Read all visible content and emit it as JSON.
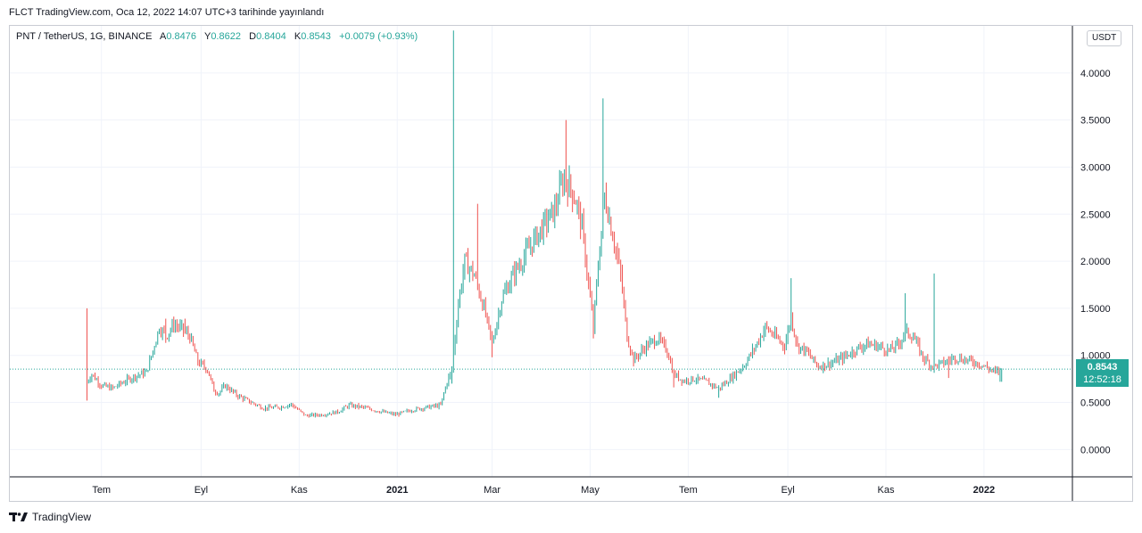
{
  "header": {
    "published_text": "FLCT TradingView.com, Oca 12, 2022 14:07 UTC+3 tarihinde yayınlandı"
  },
  "legend": {
    "symbol": "PNT / TetherUS, 1G, BINANCE",
    "open_label": "A",
    "open_value": "0.8476",
    "high_label": "Y",
    "high_value": "0.8622",
    "low_label": "D",
    "low_value": "0.8404",
    "close_label": "K",
    "close_value": "0.8543",
    "change": "+0.0079 (+0.93%)"
  },
  "currency_badge": "USDT",
  "price_tag": {
    "price": "0.8543",
    "countdown": "12:52:18"
  },
  "footer": {
    "brand": "TradingView"
  },
  "colors": {
    "up": "#26a69a",
    "down": "#ef5350",
    "grid": "#f0f3fa",
    "last_price_line": "#26a69a"
  },
  "chart_data": {
    "type": "candlestick",
    "symbol": "PNT / TetherUS",
    "interval": "1G",
    "exchange": "BINANCE",
    "y_axis": {
      "ticks": [
        "0.0000",
        "0.5000",
        "1.0000",
        "1.5000",
        "2.0000",
        "2.5000",
        "3.0000",
        "3.5000",
        "4.0000"
      ],
      "tick_values": [
        0,
        0.5,
        1.0,
        1.5,
        2.0,
        2.5,
        3.0,
        3.5,
        4.0
      ],
      "range": [
        -0.29,
        4.5
      ]
    },
    "x_axis": {
      "ticks": [
        {
          "label": "Tem",
          "date": "2020-07-01",
          "bold": false
        },
        {
          "label": "Eyl",
          "date": "2020-09-01",
          "bold": false
        },
        {
          "label": "Kas",
          "date": "2020-11-01",
          "bold": false
        },
        {
          "label": "2021",
          "date": "2021-01-01",
          "bold": true
        },
        {
          "label": "Mar",
          "date": "2021-03-01",
          "bold": false
        },
        {
          "label": "May",
          "date": "2021-05-01",
          "bold": false
        },
        {
          "label": "Tem",
          "date": "2021-07-01",
          "bold": false
        },
        {
          "label": "Eyl",
          "date": "2021-09-01",
          "bold": false
        },
        {
          "label": "Kas",
          "date": "2021-11-01",
          "bold": false
        },
        {
          "label": "2022",
          "date": "2022-01-01",
          "bold": true
        }
      ],
      "range": [
        "2020-05-05",
        "2022-02-25"
      ]
    },
    "last_price": 0.8543,
    "series_path": [
      [
        "2020-06-22",
        0.72
      ],
      [
        "2020-06-25",
        0.8
      ],
      [
        "2020-07-01",
        0.68
      ],
      [
        "2020-07-08",
        0.65
      ],
      [
        "2020-07-15",
        0.72
      ],
      [
        "2020-07-22",
        0.78
      ],
      [
        "2020-07-29",
        0.82
      ],
      [
        "2020-08-02",
        1.05
      ],
      [
        "2020-08-06",
        1.3
      ],
      [
        "2020-08-10",
        1.2
      ],
      [
        "2020-08-15",
        1.33
      ],
      [
        "2020-08-20",
        1.28
      ],
      [
        "2020-08-25",
        1.2
      ],
      [
        "2020-08-30",
        0.93
      ],
      [
        "2020-09-05",
        0.85
      ],
      [
        "2020-09-09",
        0.63
      ],
      [
        "2020-09-12",
        0.6
      ],
      [
        "2020-09-16",
        0.68
      ],
      [
        "2020-09-23",
        0.58
      ],
      [
        "2020-10-01",
        0.51
      ],
      [
        "2020-10-10",
        0.44
      ],
      [
        "2020-10-20",
        0.45
      ],
      [
        "2020-10-27",
        0.48
      ],
      [
        "2020-11-05",
        0.36
      ],
      [
        "2020-11-15",
        0.37
      ],
      [
        "2020-11-25",
        0.4
      ],
      [
        "2020-12-02",
        0.47
      ],
      [
        "2020-12-10",
        0.45
      ],
      [
        "2020-12-20",
        0.41
      ],
      [
        "2020-12-31",
        0.37
      ],
      [
        "2021-01-10",
        0.42
      ],
      [
        "2021-01-20",
        0.45
      ],
      [
        "2021-01-28",
        0.47
      ],
      [
        "2021-02-01",
        0.72
      ],
      [
        "2021-02-04",
        0.85
      ],
      [
        "2021-02-08",
        1.55
      ],
      [
        "2021-02-12",
        2.0
      ],
      [
        "2021-02-18",
        1.85
      ],
      [
        "2021-02-24",
        1.5
      ],
      [
        "2021-03-01",
        1.12
      ],
      [
        "2021-03-07",
        1.6
      ],
      [
        "2021-03-14",
        1.85
      ],
      [
        "2021-03-21",
        2.05
      ],
      [
        "2021-03-28",
        2.25
      ],
      [
        "2021-04-03",
        2.4
      ],
      [
        "2021-04-09",
        2.55
      ],
      [
        "2021-04-14",
        2.85
      ],
      [
        "2021-04-18",
        2.8
      ],
      [
        "2021-04-22",
        2.65
      ],
      [
        "2021-04-26",
        2.35
      ],
      [
        "2021-04-30",
        1.75
      ],
      [
        "2021-05-03",
        1.3
      ],
      [
        "2021-05-06",
        1.95
      ],
      [
        "2021-05-10",
        2.7
      ],
      [
        "2021-05-13",
        2.45
      ],
      [
        "2021-05-16",
        2.2
      ],
      [
        "2021-05-20",
        1.85
      ],
      [
        "2021-05-24",
        1.2
      ],
      [
        "2021-05-28",
        0.95
      ],
      [
        "2021-06-05",
        1.1
      ],
      [
        "2021-06-12",
        1.18
      ],
      [
        "2021-06-18",
        1.05
      ],
      [
        "2021-06-22",
        0.8
      ],
      [
        "2021-06-28",
        0.73
      ],
      [
        "2021-07-05",
        0.75
      ],
      [
        "2021-07-12",
        0.72
      ],
      [
        "2021-07-20",
        0.65
      ],
      [
        "2021-07-27",
        0.75
      ],
      [
        "2021-08-05",
        0.9
      ],
      [
        "2021-08-12",
        1.1
      ],
      [
        "2021-08-18",
        1.3
      ],
      [
        "2021-08-24",
        1.2
      ],
      [
        "2021-08-30",
        1.1
      ],
      [
        "2021-09-03",
        1.4
      ],
      [
        "2021-09-07",
        1.1
      ],
      [
        "2021-09-12",
        1.05
      ],
      [
        "2021-09-20",
        0.88
      ],
      [
        "2021-09-28",
        0.92
      ],
      [
        "2021-10-05",
        0.97
      ],
      [
        "2021-10-12",
        1.05
      ],
      [
        "2021-10-20",
        1.12
      ],
      [
        "2021-10-27",
        1.1
      ],
      [
        "2021-11-03",
        1.05
      ],
      [
        "2021-11-09",
        1.12
      ],
      [
        "2021-11-13",
        1.25
      ],
      [
        "2021-11-18",
        1.2
      ],
      [
        "2021-11-24",
        0.98
      ],
      [
        "2021-11-30",
        0.88
      ],
      [
        "2021-12-07",
        0.92
      ],
      [
        "2021-12-14",
        0.98
      ],
      [
        "2021-12-21",
        0.95
      ],
      [
        "2021-12-28",
        0.92
      ],
      [
        "2022-01-04",
        0.86
      ],
      [
        "2022-01-08",
        0.82
      ],
      [
        "2022-01-12",
        0.8543
      ]
    ],
    "wicks": [
      [
        "2020-06-22",
        1.5
      ],
      [
        "2020-08-10",
        1.39
      ],
      [
        "2020-08-22",
        1.39
      ],
      [
        "2021-02-05",
        4.45
      ],
      [
        "2021-02-20",
        2.61
      ],
      [
        "2021-04-16",
        3.5
      ],
      [
        "2021-05-09",
        3.73
      ],
      [
        "2021-09-03",
        1.82
      ],
      [
        "2021-11-13",
        1.66
      ],
      [
        "2021-12-01",
        1.87
      ]
    ],
    "lows": [
      [
        "2020-06-22",
        0.52
      ],
      [
        "2021-02-04",
        0.7
      ],
      [
        "2021-03-01",
        0.98
      ],
      [
        "2021-05-03",
        1.18
      ],
      [
        "2021-06-22",
        0.66
      ],
      [
        "2021-07-20",
        0.55
      ],
      [
        "2021-12-10",
        0.76
      ],
      [
        "2022-01-11",
        0.72
      ]
    ]
  }
}
